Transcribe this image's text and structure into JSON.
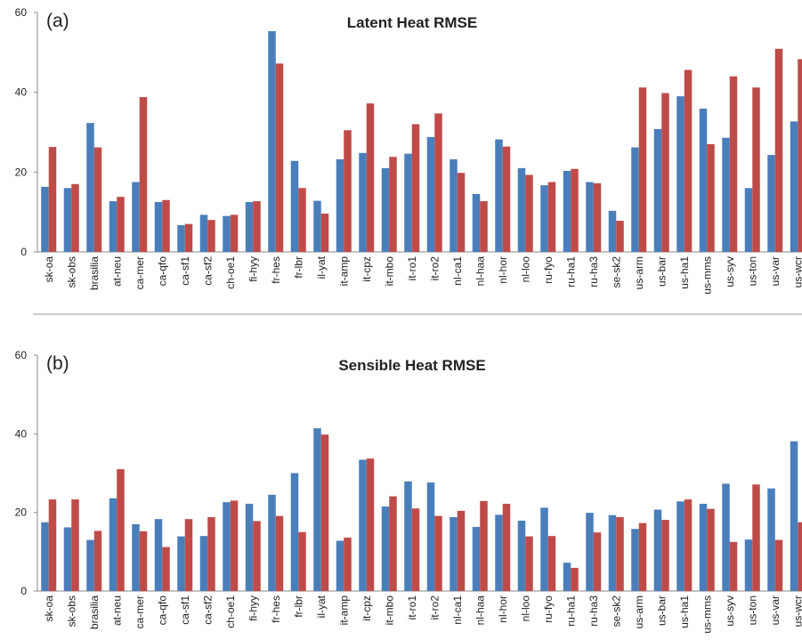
{
  "chart_data": [
    {
      "type": "bar",
      "panel_label": "(a)",
      "title": "Latent Heat RMSE",
      "categories": [
        "sk-oa",
        "sk-obs",
        "brasilia",
        "at-neu",
        "ca-mer",
        "ca-qfo",
        "ca-sf1",
        "ca-sf2",
        "ch-oe1",
        "fi-hyy",
        "fr-hes",
        "fr-lbr",
        "il-yat",
        "it-amp",
        "it-cpz",
        "it-mbo",
        "it-ro1",
        "it-ro2",
        "nl-ca1",
        "nl-haa",
        "nl-hor",
        "nl-loo",
        "ru-fyo",
        "ru-ha1",
        "ru-ha3",
        "se-sk2",
        "us-arm",
        "us-bar",
        "us-ha1",
        "us-mms",
        "us-syv",
        "us-ton",
        "us-var",
        "us-wcr"
      ],
      "series": [
        {
          "color": "#4a7ebb",
          "values": [
            16.3,
            16,
            32.3,
            12.7,
            17.5,
            12.5,
            6.7,
            9.3,
            9,
            12.5,
            55.3,
            22.8,
            12.8,
            23.2,
            24.8,
            21,
            24.6,
            28.8,
            23.2,
            14.5,
            28.2,
            21,
            16.7,
            20.3,
            17.5,
            10.3,
            26.2,
            30.8,
            39,
            35.9,
            28.6,
            16,
            24.3,
            32.7
          ]
        },
        {
          "color": "#be4b48",
          "values": [
            26.3,
            17,
            26.2,
            13.8,
            38.8,
            13,
            7,
            8,
            9.3,
            12.7,
            47.2,
            16,
            9.6,
            30.5,
            37.2,
            23.8,
            32,
            34.7,
            19.8,
            12.7,
            26.4,
            19.3,
            17.5,
            20.8,
            17.2,
            7.8,
            41.2,
            39.8,
            45.6,
            27,
            44,
            41.2,
            50.9,
            48.3
          ]
        }
      ],
      "ylim": [
        0,
        60
      ],
      "yticks": [
        0,
        20,
        40,
        60
      ],
      "grid": false
    },
    {
      "type": "bar",
      "panel_label": "(b)",
      "title": "Sensible Heat RMSE",
      "categories": [
        "sk-oa",
        "sk-obs",
        "brasilia",
        "at-neu",
        "ca-mer",
        "ca-qfo",
        "ca-sf1",
        "ca-sf2",
        "ch-oe1",
        "fi-hyy",
        "fr-hes",
        "fr-lbr",
        "il-yat",
        "it-amp",
        "it-cpz",
        "it-mbo",
        "it-ro1",
        "it-ro2",
        "nl-ca1",
        "nl-haa",
        "nl-hor",
        "nl-loo",
        "ru-fyo",
        "ru-ha1",
        "ru-ha3",
        "se-sk2",
        "us-arm",
        "us-bar",
        "us-ha1",
        "us-mms",
        "us-syv",
        "us-ton",
        "us-var",
        "us-wcr"
      ],
      "series": [
        {
          "color": "#4a7ebb",
          "values": [
            17.5,
            16.2,
            13,
            23.6,
            17,
            18.3,
            13.9,
            14,
            22.6,
            22.2,
            24.5,
            30,
            41.4,
            12.8,
            33.4,
            21.5,
            27.9,
            27.6,
            18.8,
            16.3,
            19.4,
            17.9,
            21.2,
            7.2,
            19.9,
            19.3,
            15.8,
            20.7,
            22.8,
            22.2,
            27.3,
            13.1,
            26.1,
            38.1
          ]
        },
        {
          "color": "#be4b48",
          "values": [
            23.3,
            23.3,
            15.3,
            31,
            15.2,
            11.2,
            18.3,
            18.8,
            23,
            17.8,
            19.1,
            15,
            39.8,
            13.6,
            33.7,
            24.1,
            21,
            19.1,
            20.4,
            22.9,
            22.2,
            13.9,
            14,
            5.9,
            14.9,
            18.8,
            17.3,
            18.1,
            23.3,
            20.9,
            12.5,
            27.1,
            13,
            17.5
          ]
        }
      ],
      "ylim": [
        0,
        60
      ],
      "yticks": [
        0,
        20,
        40,
        60
      ],
      "grid": false
    }
  ]
}
